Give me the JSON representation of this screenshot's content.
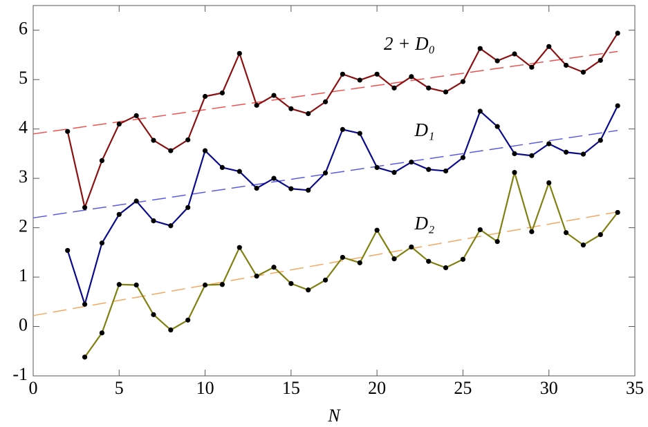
{
  "chart_data": {
    "type": "line",
    "x_label": "N",
    "xlim": [
      0,
      35
    ],
    "xticks": [
      0,
      5,
      10,
      15,
      20,
      25,
      30,
      35
    ],
    "ylim": [
      -1,
      6.5
    ],
    "yticks": [
      -1,
      0,
      1,
      2,
      3,
      4,
      5,
      6
    ],
    "series": [
      {
        "name": "2 + D₀",
        "color": "#8b1010",
        "x": [
          2,
          3,
          4,
          5,
          6,
          7,
          8,
          9,
          10,
          11,
          12,
          13,
          14,
          15,
          16,
          17,
          18,
          19,
          20,
          21,
          22,
          23,
          24,
          25,
          26,
          27,
          28,
          29,
          30,
          31,
          32,
          33,
          34
        ],
        "values": [
          3.95,
          2.41,
          3.36,
          4.1,
          4.27,
          3.77,
          3.56,
          3.78,
          4.66,
          4.73,
          5.53,
          4.48,
          4.68,
          4.41,
          4.31,
          4.55,
          5.11,
          4.99,
          5.11,
          4.83,
          5.06,
          4.83,
          4.75,
          4.96,
          5.63,
          5.38,
          5.52,
          5.25,
          5.67,
          5.29,
          5.15,
          5.39,
          5.94
        ]
      },
      {
        "name": "D₁",
        "color": "#0a0a8c",
        "x": [
          2,
          3,
          4,
          5,
          6,
          7,
          8,
          9,
          10,
          11,
          12,
          13,
          14,
          15,
          16,
          17,
          18,
          19,
          20,
          21,
          22,
          23,
          24,
          25,
          26,
          27,
          28,
          29,
          30,
          31,
          32,
          33,
          34
        ],
        "values": [
          1.54,
          0.45,
          1.69,
          2.27,
          2.54,
          2.14,
          2.04,
          2.41,
          3.56,
          3.22,
          3.14,
          2.8,
          3.0,
          2.79,
          2.76,
          3.11,
          3.99,
          3.91,
          3.22,
          3.12,
          3.33,
          3.18,
          3.15,
          3.42,
          4.36,
          4.05,
          3.5,
          3.46,
          3.7,
          3.53,
          3.49,
          3.77,
          4.47
        ]
      },
      {
        "name": "D₂",
        "color": "#808010",
        "x": [
          3,
          4,
          5,
          6,
          7,
          8,
          9,
          10,
          11,
          12,
          13,
          14,
          15,
          16,
          17,
          18,
          19,
          20,
          21,
          22,
          23,
          24,
          25,
          26,
          27,
          28,
          29,
          30,
          31,
          32,
          33,
          34
        ],
        "values": [
          -0.62,
          -0.13,
          0.85,
          0.84,
          0.24,
          -0.07,
          0.13,
          0.84,
          0.85,
          1.6,
          1.02,
          1.2,
          0.87,
          0.74,
          0.94,
          1.4,
          1.29,
          1.95,
          1.37,
          1.61,
          1.32,
          1.19,
          1.36,
          1.96,
          1.72,
          3.12,
          1.92,
          2.91,
          1.9,
          1.65,
          1.86,
          2.31
        ]
      }
    ],
    "fits": [
      {
        "color": "#ee5050",
        "x": [
          0,
          34
        ],
        "values": [
          3.9,
          5.57
        ]
      },
      {
        "color": "#5a5ae6",
        "x": [
          0,
          34
        ],
        "values": [
          2.2,
          3.97
        ]
      },
      {
        "color": "#f5a860",
        "x": [
          0,
          34
        ],
        "values": [
          0.22,
          2.32
        ]
      }
    ]
  }
}
